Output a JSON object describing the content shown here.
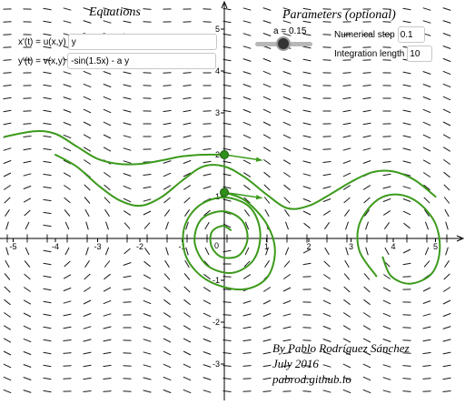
{
  "equations": {
    "title": "Equations",
    "x_label": "x'(t) = u(x,y)",
    "x_value": "y",
    "y_label": "y'(t) = v(x,y)",
    "y_value": "-sin(1.5x) - a y"
  },
  "parameters": {
    "title": "Parameters (optional)",
    "slider_label": "a = 0.15",
    "slider_value": 0.15,
    "step_label": "Numerical step",
    "step_value": "0.1",
    "length_label": "Integration length",
    "length_value": "10"
  },
  "axes": {
    "x_ticks": [
      {
        "value": -5,
        "label": "-5"
      },
      {
        "value": -4,
        "label": "-4"
      },
      {
        "value": -3,
        "label": "-3"
      },
      {
        "value": -2,
        "label": "-2"
      },
      {
        "value": -1,
        "label": "-1"
      },
      {
        "value": 1,
        "label": "1"
      },
      {
        "value": 2,
        "label": "2"
      },
      {
        "value": 3,
        "label": "3"
      },
      {
        "value": 4,
        "label": "4"
      },
      {
        "value": 5,
        "label": "5"
      }
    ],
    "y_ticks": [
      {
        "value": 5,
        "label": "5"
      },
      {
        "value": 4,
        "label": "4"
      },
      {
        "value": 3,
        "label": "3"
      },
      {
        "value": 2,
        "label": "2"
      },
      {
        "value": 1,
        "label": "1"
      },
      {
        "value": -1,
        "label": "-1"
      },
      {
        "value": -2,
        "label": "-2"
      },
      {
        "value": -3,
        "label": "-3"
      }
    ],
    "origin_label": "0",
    "x_range": [
      -5.2,
      5.6
    ],
    "y_range": [
      -3.9,
      5.4
    ]
  },
  "colors": {
    "trajectory": "#3c9a1c",
    "point": "#2f8f1a",
    "field": "#1a1a1a",
    "axis": "#000000"
  },
  "initial_points": [
    {
      "x": 0.0,
      "y": 2.0
    },
    {
      "x": 0.0,
      "y": 1.1
    }
  ],
  "trajectories_sketch": [
    {
      "name": "upper-wave",
      "points": [
        [
          -5.2,
          2.43
        ],
        [
          -4.5,
          2.56
        ],
        [
          -4.0,
          2.5
        ],
        [
          -3.5,
          2.2
        ],
        [
          -3.0,
          1.9
        ],
        [
          -2.5,
          1.78
        ],
        [
          -2.0,
          1.78
        ],
        [
          -1.5,
          1.86
        ],
        [
          -1.0,
          1.96
        ],
        [
          -0.5,
          2.0
        ],
        [
          0.0,
          2.0
        ]
      ]
    },
    {
      "name": "middle-wave",
      "points": [
        [
          -4.0,
          2.0
        ],
        [
          -3.5,
          1.72
        ],
        [
          -3.0,
          1.28
        ],
        [
          -2.5,
          0.92
        ],
        [
          -2.0,
          0.78
        ],
        [
          -1.5,
          0.98
        ],
        [
          -1.0,
          1.38
        ],
        [
          -0.5,
          1.72
        ],
        [
          0.0,
          1.72
        ],
        [
          0.5,
          1.45
        ],
        [
          1.0,
          1.05
        ],
        [
          1.5,
          0.72
        ],
        [
          2.0,
          0.78
        ],
        [
          2.5,
          1.05
        ],
        [
          3.0,
          1.35
        ],
        [
          3.5,
          1.58
        ],
        [
          4.0,
          1.6
        ],
        [
          4.5,
          1.4
        ],
        [
          5.0,
          1.0
        ]
      ]
    },
    {
      "name": "spiral-origin",
      "points": [
        [
          0.0,
          1.1
        ],
        [
          0.5,
          0.9
        ],
        [
          1.0,
          0.35
        ],
        [
          1.2,
          -0.3
        ],
        [
          1.0,
          -0.95
        ],
        [
          0.4,
          -1.22
        ],
        [
          -0.4,
          -1.0
        ],
        [
          -0.9,
          -0.45
        ],
        [
          -0.95,
          0.25
        ],
        [
          -0.6,
          0.78
        ],
        [
          0.0,
          0.98
        ],
        [
          0.6,
          0.75
        ],
        [
          0.85,
          0.15
        ],
        [
          0.7,
          -0.5
        ],
        [
          0.2,
          -0.82
        ],
        [
          -0.4,
          -0.65
        ],
        [
          -0.7,
          -0.1
        ],
        [
          -0.55,
          0.45
        ],
        [
          -0.05,
          0.65
        ],
        [
          0.4,
          0.45
        ],
        [
          0.55,
          0.0
        ],
        [
          0.35,
          -0.4
        ],
        [
          -0.05,
          -0.45
        ],
        [
          -0.3,
          -0.2
        ],
        [
          -0.3,
          0.15
        ],
        [
          -0.05,
          0.3
        ],
        [
          0.15,
          0.2
        ]
      ]
    },
    {
      "name": "spiral-right",
      "points": [
        [
          3.6,
          -0.9
        ],
        [
          3.2,
          -0.3
        ],
        [
          3.2,
          0.35
        ],
        [
          3.6,
          0.9
        ],
        [
          4.1,
          1.05
        ],
        [
          4.6,
          0.85
        ],
        [
          5.0,
          0.35
        ],
        [
          5.1,
          -0.3
        ],
        [
          4.9,
          -0.85
        ],
        [
          4.4,
          -1.08
        ],
        [
          3.95,
          -0.9
        ],
        [
          3.75,
          -0.45
        ]
      ]
    }
  ],
  "credits": {
    "author": "By Pablo Rodríguez Sánchez",
    "date": "July 2016",
    "site": "pabrod.github.io"
  }
}
